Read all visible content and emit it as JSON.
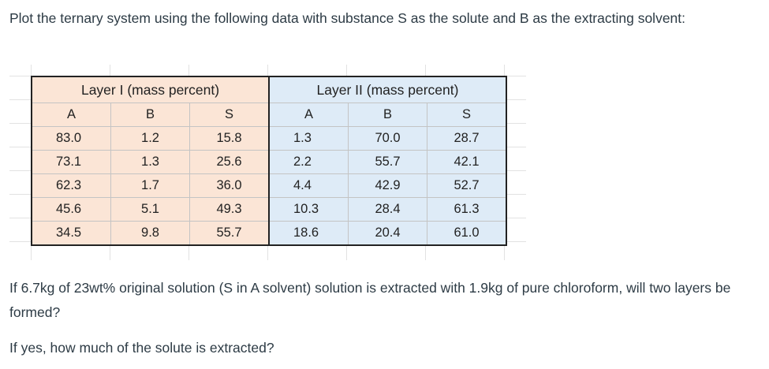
{
  "intro": "Plot the ternary system using the following data with substance S as the solute and B as the extracting solvent:",
  "table": {
    "group_headers": [
      "Layer I (mass percent)",
      "Layer II (mass percent)"
    ],
    "column_headers": [
      "A",
      "B",
      "S",
      "A",
      "B",
      "S"
    ],
    "rows": [
      [
        "83.0",
        "1.2",
        "15.8",
        "1.3",
        "70.0",
        "28.7"
      ],
      [
        "73.1",
        "1.3",
        "25.6",
        "2.2",
        "55.7",
        "42.1"
      ],
      [
        "62.3",
        "1.7",
        "36.0",
        "4.4",
        "42.9",
        "52.7"
      ],
      [
        "45.6",
        "5.1",
        "49.3",
        "10.3",
        "28.4",
        "61.3"
      ],
      [
        "34.5",
        "9.8",
        "55.7",
        "18.6",
        "20.4",
        "61.0"
      ]
    ]
  },
  "question": "If 6.7kg of  23wt% original solution (S in A solvent) solution is extracted with 1.9kg of pure chloroform, will two layers be formed?",
  "followup": "If yes, how much of the solute is extracted?",
  "colors": {
    "layer1_fill": "#fbe5d6",
    "layer2_fill": "#deebf7",
    "text": "#2d3b45"
  }
}
